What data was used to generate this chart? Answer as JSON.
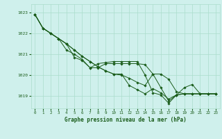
{
  "title": "Graphe pression niveau de la mer (hPa)",
  "xlim": [
    -0.5,
    23.5
  ],
  "ylim": [
    1018.4,
    1023.4
  ],
  "y_ticks": [
    1019,
    1020,
    1021,
    1022,
    1023
  ],
  "x_ticks": [
    0,
    1,
    2,
    3,
    4,
    5,
    6,
    7,
    8,
    9,
    10,
    11,
    12,
    13,
    14,
    15,
    16,
    17,
    18,
    19,
    20,
    21,
    22,
    23
  ],
  "bg_color": "#cff0ec",
  "grid_color": "#aaddcc",
  "line_color": "#1a5c1a",
  "series": [
    [
      1022.9,
      1022.25,
      1022.0,
      1021.75,
      1021.5,
      1021.2,
      1020.9,
      1020.65,
      1020.4,
      1020.2,
      1020.05,
      1020.05,
      1019.5,
      1019.3,
      1019.1,
      1019.35,
      1019.15,
      1018.85,
      1019.05,
      1019.1,
      1019.1,
      1019.1,
      1019.1,
      1019.1
    ],
    [
      1022.9,
      1022.25,
      1022.0,
      1021.75,
      1021.5,
      1021.2,
      1020.9,
      1020.65,
      1020.4,
      1020.2,
      1020.05,
      1020.0,
      1019.85,
      1019.65,
      1019.5,
      1020.05,
      1020.05,
      1019.8,
      1019.2,
      1019.1,
      1019.1,
      1019.1,
      1019.1,
      1019.1
    ],
    [
      1022.9,
      1022.25,
      1022.0,
      1021.75,
      1021.2,
      1021.0,
      1020.75,
      1020.35,
      1020.35,
      1020.55,
      1020.55,
      1020.55,
      1020.55,
      1020.55,
      1020.5,
      1020.05,
      1019.4,
      1018.75,
      1019.05,
      1019.1,
      1019.1,
      1019.1,
      1019.1,
      1019.1
    ],
    [
      1022.9,
      1022.25,
      1022.0,
      1021.75,
      1021.5,
      1020.85,
      1020.7,
      1020.35,
      1020.55,
      1020.6,
      1020.65,
      1020.65,
      1020.65,
      1020.65,
      1020.0,
      1019.15,
      1019.05,
      1018.65,
      1019.05,
      1019.4,
      1019.55,
      1019.1,
      1019.1,
      1019.1
    ]
  ]
}
